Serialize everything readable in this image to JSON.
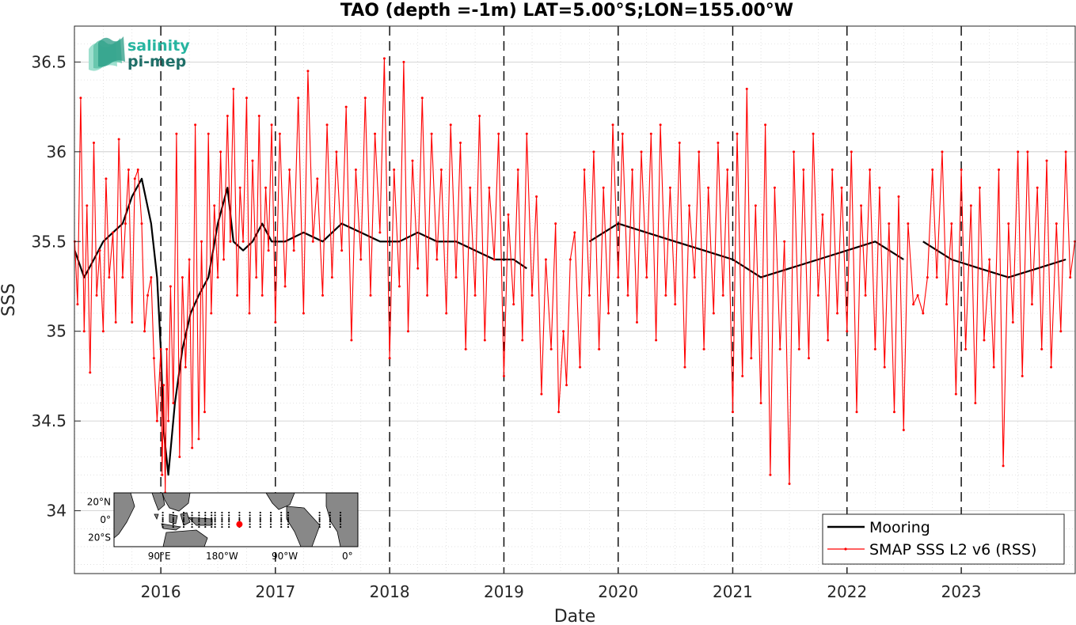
{
  "logo": {
    "line1": "salinity",
    "line2": "pi-mep"
  },
  "inset_map": {
    "lat_labels": [
      {
        "value": 20,
        "label": "20°N"
      },
      {
        "value": 0,
        "label": "0°"
      },
      {
        "value": -20,
        "label": "20°S"
      }
    ],
    "lon_labels": [
      {
        "value": 90,
        "label": "90°E"
      },
      {
        "value": 180,
        "label": "180°W"
      },
      {
        "value": 270,
        "label": "90°W"
      },
      {
        "value": 360,
        "label": "0°"
      }
    ],
    "marker": {
      "lat": -5,
      "lon": 205
    },
    "colors": {
      "land": "#888888",
      "ocean": "#ffffff",
      "moorings": "#000000",
      "marker": "#ff0000"
    }
  },
  "chart_data": {
    "type": "line",
    "title": "TAO (depth =-1m) LAT=5.00°S;LON=155.00°W",
    "xlabel": "Date",
    "ylabel": "SSS",
    "xlim": [
      "2015-03-31",
      "2023-12-31"
    ],
    "ylim": [
      33.65,
      36.7
    ],
    "x_ticks": [
      "2016",
      "2017",
      "2018",
      "2019",
      "2020",
      "2021",
      "2022",
      "2023"
    ],
    "y_ticks": [
      34,
      34.5,
      35,
      35.5,
      36,
      36.5
    ],
    "grid": true,
    "year_boundaries": [
      "2016-01-01",
      "2017-01-01",
      "2018-01-01",
      "2019-01-01",
      "2020-01-01",
      "2021-01-01",
      "2022-01-01",
      "2023-01-01"
    ],
    "legend_position": "bottom-right",
    "series": [
      {
        "name": "Mooring",
        "color": "#000000",
        "x": [
          "2015-04-01",
          "2015-05-01",
          "2015-06-01",
          "2015-07-01",
          "2015-08-01",
          "2015-09-01",
          "2015-10-01",
          "2015-11-01",
          "2015-12-01",
          "2015-12-20",
          "2016-01-01",
          "2016-01-10",
          "2016-01-25",
          "2016-02-15",
          "2016-03-10",
          "2016-04-05",
          "2016-05-01",
          "2016-06-01",
          "2016-07-01",
          "2016-08-01",
          "2016-08-20",
          "2016-09-20",
          "2016-10-20",
          "2016-11-20",
          "2016-12-20",
          "2017-02-01",
          "2017-04-01",
          "2017-06-01",
          "2017-08-01",
          "2017-10-01",
          "2017-12-01",
          "2018-02-01",
          "2018-04-01",
          "2018-06-01",
          "2018-08-01",
          "2018-10-01",
          "2018-12-01",
          "2019-02-01",
          "2019-03-15",
          null,
          "2019-10-01",
          "2020-01-01",
          "2020-04-01",
          "2020-07-01",
          "2020-10-01",
          "2021-01-01",
          "2021-04-01",
          "2021-07-01",
          "2021-10-01",
          "2022-01-01",
          "2022-04-01",
          "2022-07-01",
          null,
          "2022-09-01",
          "2022-12-01",
          "2023-03-01",
          "2023-06-01",
          "2023-09-01",
          "2023-12-01"
        ],
        "y": [
          35.45,
          35.3,
          35.4,
          35.5,
          35.55,
          35.6,
          35.75,
          35.85,
          35.6,
          35.3,
          34.9,
          34.45,
          34.2,
          34.6,
          34.9,
          35.1,
          35.2,
          35.3,
          35.6,
          35.8,
          35.5,
          35.45,
          35.5,
          35.6,
          35.5,
          35.5,
          35.55,
          35.5,
          35.6,
          35.55,
          35.5,
          35.5,
          35.55,
          35.5,
          35.5,
          35.45,
          35.4,
          35.4,
          35.35,
          null,
          35.5,
          35.6,
          35.55,
          35.5,
          35.45,
          35.4,
          35.3,
          35.35,
          35.4,
          35.45,
          35.5,
          35.4,
          null,
          35.5,
          35.4,
          35.35,
          35.3,
          35.35,
          35.4
        ]
      },
      {
        "name": "SMAP SSS L2 v6 (RSS)",
        "color": "#ff0000",
        "x": [
          "2015-04-01",
          "2015-04-10",
          "2015-04-20",
          "2015-05-01",
          "2015-05-10",
          "2015-05-20",
          "2015-06-01",
          "2015-06-10",
          "2015-06-20",
          "2015-07-01",
          "2015-07-10",
          "2015-07-20",
          "2015-08-01",
          "2015-08-10",
          "2015-08-20",
          "2015-09-01",
          "2015-09-10",
          "2015-09-20",
          "2015-10-01",
          "2015-10-10",
          "2015-10-20",
          "2015-11-01",
          "2015-11-10",
          "2015-11-20",
          "2015-12-01",
          "2015-12-10",
          "2015-12-20",
          "2016-01-01",
          "2016-01-05",
          "2016-01-10",
          "2016-01-15",
          "2016-01-20",
          "2016-01-25",
          "2016-02-01",
          "2016-02-10",
          "2016-02-20",
          "2016-03-01",
          "2016-03-10",
          "2016-03-20",
          "2016-04-01",
          "2016-04-10",
          "2016-04-20",
          "2016-05-01",
          "2016-05-10",
          "2016-05-20",
          "2016-06-01",
          "2016-06-10",
          "2016-06-20",
          "2016-07-01",
          "2016-07-10",
          "2016-07-20",
          "2016-08-01",
          "2016-08-10",
          "2016-08-20",
          "2016-09-01",
          "2016-09-10",
          "2016-09-20",
          "2016-10-01",
          "2016-10-10",
          "2016-10-20",
          "2016-11-01",
          "2016-11-10",
          "2016-11-20",
          "2016-12-01",
          "2016-12-10",
          "2016-12-20",
          "2017-01-01",
          "2017-01-15",
          "2017-02-01",
          "2017-02-15",
          "2017-03-01",
          "2017-03-15",
          "2017-04-01",
          "2017-04-15",
          "2017-05-01",
          "2017-05-15",
          "2017-06-01",
          "2017-06-15",
          "2017-07-01",
          "2017-07-15",
          "2017-08-01",
          "2017-08-15",
          "2017-09-01",
          "2017-09-15",
          "2017-10-01",
          "2017-10-15",
          "2017-11-01",
          "2017-11-15",
          "2017-12-01",
          "2017-12-15",
          "2018-01-01",
          "2018-01-15",
          "2018-02-01",
          "2018-02-15",
          "2018-03-01",
          "2018-03-15",
          "2018-04-01",
          "2018-04-15",
          "2018-05-01",
          "2018-05-15",
          "2018-06-01",
          "2018-06-15",
          "2018-07-01",
          "2018-07-15",
          "2018-08-01",
          "2018-08-15",
          "2018-09-01",
          "2018-09-15",
          "2018-10-01",
          "2018-10-15",
          "2018-11-01",
          "2018-11-15",
          "2018-12-01",
          "2018-12-15",
          "2019-01-01",
          "2019-01-15",
          "2019-02-01",
          "2019-02-15",
          "2019-03-01",
          "2019-03-15",
          "2019-04-01",
          "2019-04-15",
          "2019-05-01",
          "2019-05-15",
          "2019-06-01",
          "2019-06-15",
          "2019-06-25",
          "2019-07-10",
          "2019-07-20",
          "2019-08-01",
          "2019-08-15",
          "2019-09-01",
          "2019-09-15",
          "2019-10-01",
          "2019-10-15",
          "2019-11-01",
          "2019-11-15",
          "2019-12-01",
          "2019-12-15",
          "2020-01-01",
          "2020-01-15",
          "2020-02-01",
          "2020-02-15",
          "2020-03-01",
          "2020-03-15",
          "2020-04-01",
          "2020-04-15",
          "2020-05-01",
          "2020-05-15",
          "2020-06-01",
          "2020-06-15",
          "2020-07-01",
          "2020-07-15",
          "2020-08-01",
          "2020-08-15",
          "2020-09-01",
          "2020-09-15",
          "2020-10-01",
          "2020-10-15",
          "2020-11-01",
          "2020-11-15",
          "2020-12-01",
          "2020-12-15",
          "2021-01-01",
          "2021-01-15",
          "2021-02-01",
          "2021-02-15",
          "2021-03-01",
          "2021-03-15",
          "2021-04-01",
          "2021-04-15",
          "2021-05-01",
          "2021-05-15",
          "2021-06-01",
          "2021-06-15",
          "2021-07-01",
          "2021-07-15",
          "2021-08-01",
          "2021-08-15",
          "2021-09-01",
          "2021-09-15",
          "2021-10-01",
          "2021-10-15",
          "2021-11-01",
          "2021-11-15",
          "2021-12-01",
          "2021-12-15",
          "2022-01-01",
          "2022-01-15",
          "2022-02-01",
          "2022-02-15",
          "2022-03-01",
          "2022-03-15",
          "2022-04-01",
          "2022-04-15",
          "2022-05-01",
          "2022-05-15",
          "2022-06-01",
          "2022-06-15",
          "2022-07-01",
          "2022-07-15",
          "2022-08-01",
          "2022-08-15",
          "2022-09-01",
          "2022-09-15",
          "2022-10-01",
          "2022-10-15",
          "2022-11-01",
          "2022-11-15",
          "2022-12-01",
          "2022-12-15",
          "2023-01-01",
          "2023-01-15",
          "2023-02-01",
          "2023-02-15",
          "2023-03-01",
          "2023-03-15",
          "2023-04-01",
          "2023-04-15",
          "2023-05-01",
          "2023-05-15",
          "2023-06-01",
          "2023-06-15",
          "2023-07-01",
          "2023-07-15",
          "2023-08-01",
          "2023-08-15",
          "2023-09-01",
          "2023-09-15",
          "2023-10-01",
          "2023-10-15",
          "2023-11-01",
          "2023-11-15",
          "2023-12-01",
          "2023-12-15",
          "2023-12-30"
        ],
        "y": [
          35.5,
          35.15,
          36.3,
          35.0,
          35.7,
          34.77,
          36.05,
          35.2,
          35.45,
          35.0,
          35.85,
          35.3,
          35.55,
          35.05,
          36.07,
          35.3,
          35.6,
          35.9,
          35.05,
          35.85,
          35.9,
          35.6,
          35.0,
          35.2,
          35.3,
          34.85,
          34.5,
          34.9,
          34.2,
          34.7,
          34.1,
          34.9,
          34.5,
          35.25,
          34.6,
          36.1,
          34.3,
          35.3,
          34.8,
          35.4,
          34.35,
          36.15,
          34.4,
          35.5,
          34.55,
          36.1,
          35.1,
          35.7,
          35.3,
          36.0,
          35.4,
          36.2,
          35.5,
          36.35,
          35.2,
          35.8,
          35.5,
          36.3,
          35.1,
          35.95,
          35.3,
          36.2,
          35.2,
          35.8,
          35.45,
          36.15,
          35.05,
          36.1,
          35.25,
          35.9,
          35.45,
          36.3,
          35.1,
          36.45,
          35.5,
          35.85,
          35.2,
          36.15,
          35.3,
          36.0,
          35.45,
          36.25,
          34.95,
          35.9,
          35.4,
          36.3,
          35.2,
          36.1,
          35.55,
          36.52,
          34.85,
          35.9,
          35.25,
          36.5,
          35.0,
          35.95,
          35.35,
          36.3,
          35.2,
          36.1,
          35.4,
          35.9,
          35.1,
          36.15,
          35.3,
          36.05,
          34.9,
          35.8,
          35.2,
          36.2,
          34.95,
          35.8,
          35.4,
          36.1,
          34.75,
          35.65,
          35.15,
          35.9,
          34.95,
          36.1,
          35.2,
          35.75,
          34.65,
          35.4,
          34.9,
          35.6,
          34.55,
          35.0,
          34.7,
          35.4,
          35.55,
          34.8,
          35.9,
          35.2,
          36.0,
          34.9,
          35.8,
          35.1,
          36.15,
          35.3,
          36.1,
          35.2,
          35.9,
          35.05,
          36.0,
          35.3,
          36.1,
          34.95,
          36.15,
          35.2,
          35.8,
          35.15,
          36.05,
          34.8,
          35.7,
          35.3,
          36.0,
          34.9,
          35.8,
          35.1,
          36.05,
          35.2,
          35.9,
          34.55,
          36.1,
          34.75,
          36.35,
          34.85,
          35.7,
          34.6,
          36.15,
          34.2,
          35.8,
          34.9,
          35.5,
          34.15,
          36.0,
          34.9,
          35.9,
          34.85,
          36.1,
          35.2,
          35.65,
          34.95,
          35.9,
          35.1,
          35.8,
          35.0,
          36.0,
          34.55,
          35.7,
          35.2,
          35.9,
          34.9,
          35.8,
          34.8,
          35.6,
          34.55,
          35.75,
          34.45,
          35.6,
          35.15,
          35.2,
          35.1,
          35.3,
          35.9,
          35.3,
          36.0,
          35.15,
          35.6,
          34.65,
          35.9,
          34.9,
          35.7,
          34.6,
          35.8,
          34.95,
          35.4,
          34.8,
          35.9,
          34.25,
          35.6,
          35.05,
          36.0,
          34.75,
          36.0,
          35.15,
          35.8,
          34.9,
          35.95,
          34.8,
          35.6,
          35.0,
          36.0,
          35.3,
          35.5
        ]
      }
    ]
  }
}
